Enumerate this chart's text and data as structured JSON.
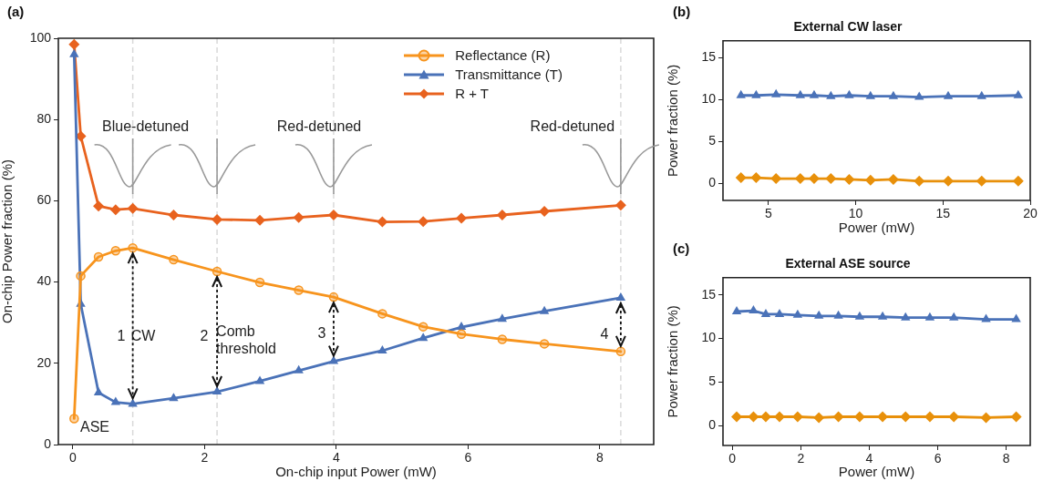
{
  "chart_data": [
    {
      "type": "line",
      "xlabel": "On-chip input Power (mW)",
      "ylabel": "On-chip Power fraction (%)",
      "x": [
        0.02,
        0.12,
        0.39,
        0.65,
        0.91,
        1.53,
        2.19,
        2.84,
        3.43,
        3.96,
        4.7,
        5.32,
        5.9,
        6.52,
        7.16,
        8.32
      ],
      "series": [
        {
          "name": "Reflectance (R)",
          "color": "#f7941d",
          "marker": "circle",
          "values": [
            6.4,
            41.5,
            46.2,
            47.7,
            48.4,
            45.5,
            42.6,
            39.9,
            38.0,
            36.3,
            32.2,
            29.0,
            27.2,
            25.9,
            24.8,
            22.9
          ]
        },
        {
          "name": "Transmittance (T)",
          "color": "#4a72b8",
          "marker": "triangle",
          "values": [
            96.0,
            34.6,
            12.8,
            10.4,
            10.0,
            11.4,
            13.0,
            15.6,
            18.2,
            20.5,
            23.1,
            26.2,
            28.9,
            30.9,
            32.8,
            36.1
          ]
        },
        {
          "name": "R + T",
          "color": "#e8621e",
          "marker": "diamond",
          "values": [
            98.5,
            75.9,
            58.7,
            57.8,
            58.1,
            56.5,
            55.4,
            55.2,
            55.9,
            56.5,
            54.8,
            54.9,
            55.7,
            56.5,
            57.4,
            58.9
          ]
        }
      ],
      "xlim": [
        -0.22,
        8.82
      ],
      "xticks": [
        0,
        2,
        4,
        6,
        8
      ],
      "ylim": [
        0,
        100
      ],
      "yticks": [
        0,
        20,
        40,
        60,
        80,
        100
      ],
      "grid": false,
      "legend": "top right",
      "line_style": "solid",
      "ref_lines": [
        {
          "axis": "x",
          "value": 0.91,
          "color": "#d9d9d9",
          "line_style": "dashed"
        },
        {
          "axis": "x",
          "value": 2.19,
          "color": "#d9d9d9",
          "line_style": "dashed"
        },
        {
          "axis": "x",
          "value": 3.96,
          "color": "#d9d9d9",
          "line_style": "dashed"
        },
        {
          "axis": "x",
          "value": 8.32,
          "color": "#d9d9d9",
          "line_style": "dashed"
        }
      ],
      "annotations": [
        "(a)",
        {
          "text": "Blue-detuned",
          "x": 0.91,
          "y": 61.6
        },
        {
          "text": "Red-detuned",
          "x": 3.96,
          "y": 61.6
        },
        {
          "text": "Red-detuned",
          "x": 8.32,
          "y": 61.6
        },
        "1",
        "CW",
        "2",
        "Comb\nthreshold",
        "3",
        {
          "text": "4",
          "x": 8.32,
          "y": 29.5
        },
        "ASE"
      ]
    },
    {
      "type": "line",
      "title": "External CW laser",
      "xlabel": "Power (mW)",
      "ylabel": "Power fraction (%)",
      "x": [
        3.43,
        4.3,
        5.44,
        6.83,
        7.62,
        8.58,
        9.63,
        10.85,
        12.16,
        13.64,
        15.3,
        17.22,
        19.31
      ],
      "series": [
        {
          "color": "#4a72b8",
          "marker": "triangle",
          "values": [
            10.5,
            10.5,
            10.6,
            10.5,
            10.5,
            10.4,
            10.5,
            10.4,
            10.4,
            10.3,
            10.4,
            10.4,
            10.5
          ]
        },
        {
          "color": "#e8900a",
          "marker": "diamond",
          "values": [
            0.7,
            0.7,
            0.6,
            0.6,
            0.6,
            0.6,
            0.5,
            0.4,
            0.5,
            0.3,
            0.3,
            0.3,
            0.3
          ]
        }
      ],
      "xlim": [
        2.4,
        20
      ],
      "xticks": [
        5,
        10,
        15,
        20
      ],
      "ylim": [
        -2,
        17
      ],
      "yticks": [
        0,
        5,
        10,
        15
      ],
      "grid": false,
      "line_style": "solid",
      "annotations": [
        "(b)"
      ]
    },
    {
      "type": "line",
      "title": "External ASE source",
      "xlabel": "Power (mW)",
      "ylabel": "Power fraction (%)",
      "x": [
        0.13,
        0.62,
        0.98,
        1.38,
        1.91,
        2.53,
        3.1,
        3.72,
        4.39,
        5.06,
        5.77,
        6.47,
        7.41,
        8.29
      ],
      "series": [
        {
          "color": "#4a72b8",
          "marker": "triangle",
          "values": [
            13.1,
            13.2,
            12.8,
            12.8,
            12.7,
            12.6,
            12.6,
            12.5,
            12.5,
            12.4,
            12.4,
            12.4,
            12.2,
            12.2
          ]
        },
        {
          "color": "#e8900a",
          "marker": "diamond",
          "values": [
            1.0,
            1.0,
            1.0,
            1.0,
            1.0,
            0.9,
            1.0,
            1.0,
            1.0,
            1.0,
            1.0,
            1.0,
            0.9,
            1.0
          ]
        }
      ],
      "xlim": [
        -0.27,
        8.7
      ],
      "xticks": [
        0,
        2,
        4,
        6,
        8
      ],
      "ylim": [
        -2.3,
        17
      ],
      "yticks": [
        0,
        5,
        10,
        15
      ],
      "grid": false,
      "line_style": "solid",
      "annotations": [
        "(c)"
      ]
    }
  ]
}
